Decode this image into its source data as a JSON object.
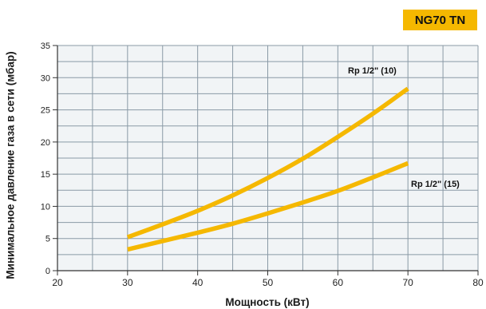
{
  "badge": "NG70 TN",
  "chart_data": {
    "type": "line",
    "xlabel": "Мощность  (кВт)",
    "ylabel": "Минимальное давление газа в сети (мбар)",
    "xlim": [
      20,
      80
    ],
    "ylim": [
      0,
      35
    ],
    "x_ticks": [
      20,
      30,
      40,
      50,
      60,
      70,
      80
    ],
    "y_ticks": [
      0,
      5,
      10,
      15,
      20,
      25,
      30,
      35
    ],
    "grid": true,
    "series": [
      {
        "name": "Rp 1/2\" (10)",
        "x": [
          30,
          35,
          40,
          45,
          50,
          55,
          60,
          65,
          70
        ],
        "values": [
          5.2,
          7.2,
          9.3,
          11.7,
          14.4,
          17.4,
          20.8,
          24.4,
          28.3
        ]
      },
      {
        "name": "Rp 1/2\" (15)",
        "x": [
          30,
          35,
          40,
          45,
          50,
          55,
          60,
          65,
          70
        ],
        "values": [
          3.3,
          4.6,
          5.9,
          7.3,
          8.9,
          10.6,
          12.4,
          14.5,
          16.7
        ]
      }
    ],
    "colors": {
      "line": "#F5B800",
      "grid": "#8a9aa6",
      "plot_bg": "#F1F4F6",
      "badge": "#F5B800"
    }
  }
}
